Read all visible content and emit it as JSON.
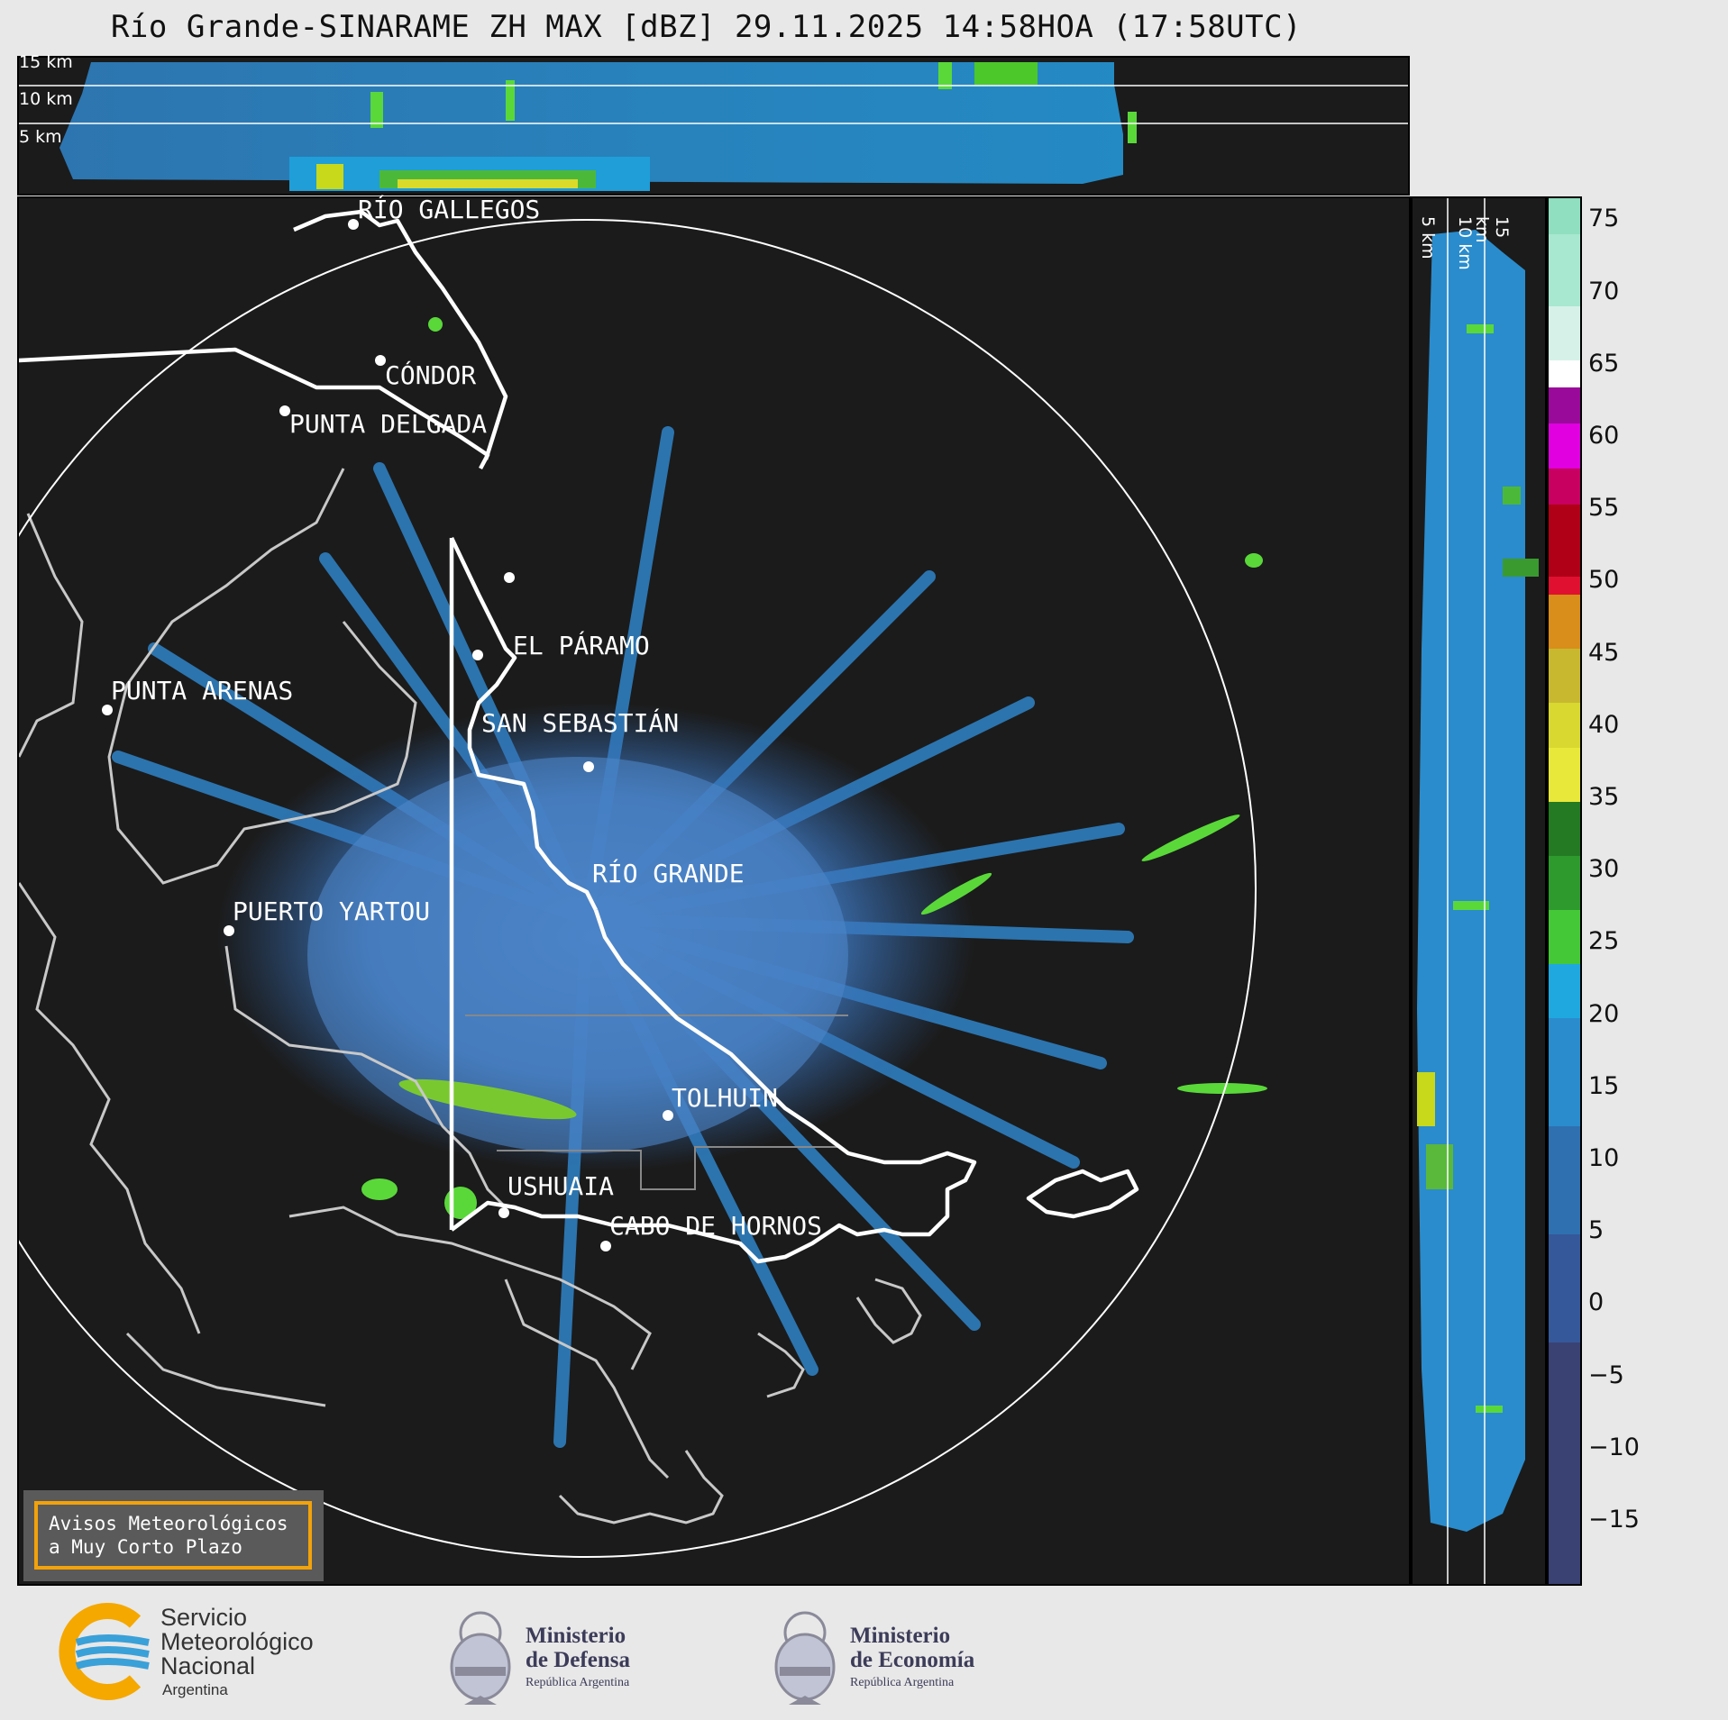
{
  "title": "Río Grande-SINARAME ZH MAX [dBZ] 29.11.2025 14:58HOA (17:58UTC)",
  "top_panel": {
    "height_labels": [
      "15 km",
      "10 km",
      "5 km"
    ]
  },
  "side_panel": {
    "height_labels": [
      "5 km",
      "10 km",
      "15 km"
    ]
  },
  "cities": [
    "RÍO GALLEGOS",
    "CÓNDOR",
    "PUNTA DELGADA",
    "EL PÁRAMO",
    "SAN SEBASTIÁN",
    "PUNTA ARENAS",
    "RÍO GRANDE",
    "PUERTO YARTOU",
    "TOLHUIN",
    "USHUAIA",
    "CABO DE HORNOS"
  ],
  "colorbar": {
    "unit": "dBZ",
    "ticks": [
      "75",
      "70",
      "65",
      "60",
      "55",
      "50",
      "45",
      "40",
      "35",
      "30",
      "25",
      "20",
      "15",
      "10",
      "5",
      "0",
      "−5",
      "−10",
      "−15"
    ],
    "colors": {
      "under_10": "#3a4173",
      "low": "#2f6fb0",
      "mid": "#1f9ed8",
      "green": "#2e8b2e",
      "yellow": "#e8e83a",
      "orange": "#d98d1a",
      "red": "#d01030",
      "magenta": "#d000d0",
      "white": "#ffffff",
      "teal": "#8fdfc0"
    }
  },
  "warning": {
    "line1": "Avisos Meteorológicos",
    "line2": "a Muy Corto Plazo"
  },
  "footer": {
    "smn": {
      "line1": "Servicio",
      "line2": "Meteorológico",
      "line3": "Nacional",
      "line4": "Argentina"
    },
    "defensa": {
      "line1": "Ministerio",
      "line2": "de Defensa",
      "line3": "República Argentina"
    },
    "economia": {
      "line1": "Ministerio",
      "line2": "de Economía",
      "line3": "República Argentina"
    }
  }
}
